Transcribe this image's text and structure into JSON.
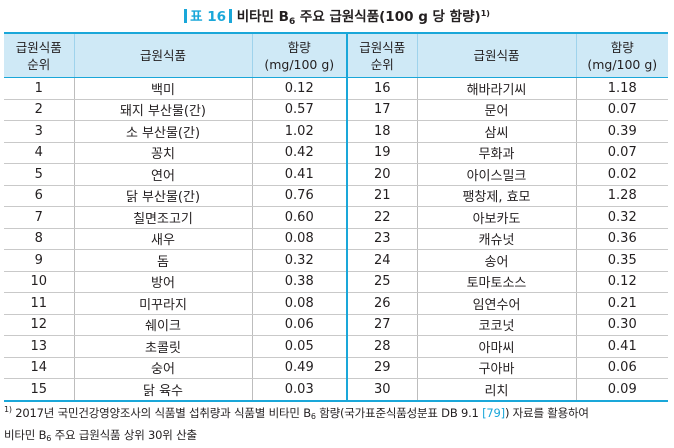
{
  "title": {
    "tag": "표 16",
    "text_before": "비타민 B",
    "subscript": "6",
    "text_after": " 주요 급원식품(100 g 당 함량)",
    "note_mark": "1)"
  },
  "table": {
    "headers": {
      "rank": [
        "급원식품",
        "순위"
      ],
      "food": "급원식품",
      "amount": [
        "함량",
        "(mg/100 g)"
      ]
    },
    "left_rows": [
      {
        "rank": "1",
        "food": "백미",
        "amount": "0.12"
      },
      {
        "rank": "2",
        "food": "돼지 부산물(간)",
        "amount": "0.57"
      },
      {
        "rank": "3",
        "food": "소 부산물(간)",
        "amount": "1.02"
      },
      {
        "rank": "4",
        "food": "꽁치",
        "amount": "0.42"
      },
      {
        "rank": "5",
        "food": "연어",
        "amount": "0.41"
      },
      {
        "rank": "6",
        "food": "닭 부산물(간)",
        "amount": "0.76"
      },
      {
        "rank": "7",
        "food": "칠면조고기",
        "amount": "0.60"
      },
      {
        "rank": "8",
        "food": "새우",
        "amount": "0.08"
      },
      {
        "rank": "9",
        "food": "돔",
        "amount": "0.32"
      },
      {
        "rank": "10",
        "food": "방어",
        "amount": "0.38"
      },
      {
        "rank": "11",
        "food": "미꾸라지",
        "amount": "0.08"
      },
      {
        "rank": "12",
        "food": "쉐이크",
        "amount": "0.06"
      },
      {
        "rank": "13",
        "food": "초콜릿",
        "amount": "0.05"
      },
      {
        "rank": "14",
        "food": "숭어",
        "amount": "0.49"
      },
      {
        "rank": "15",
        "food": "닭 육수",
        "amount": "0.03"
      }
    ],
    "right_rows": [
      {
        "rank": "16",
        "food": "해바라기씨",
        "amount": "1.18"
      },
      {
        "rank": "17",
        "food": "문어",
        "amount": "0.07"
      },
      {
        "rank": "18",
        "food": "삼씨",
        "amount": "0.39"
      },
      {
        "rank": "19",
        "food": "무화과",
        "amount": "0.07"
      },
      {
        "rank": "20",
        "food": "아이스밀크",
        "amount": "0.02"
      },
      {
        "rank": "21",
        "food": "팽창제, 효모",
        "amount": "1.28"
      },
      {
        "rank": "22",
        "food": "아보카도",
        "amount": "0.32"
      },
      {
        "rank": "23",
        "food": "캐슈넛",
        "amount": "0.36"
      },
      {
        "rank": "24",
        "food": "송어",
        "amount": "0.35"
      },
      {
        "rank": "25",
        "food": "토마토소스",
        "amount": "0.12"
      },
      {
        "rank": "26",
        "food": "임연수어",
        "amount": "0.21"
      },
      {
        "rank": "27",
        "food": "코코넛",
        "amount": "0.30"
      },
      {
        "rank": "28",
        "food": "아마씨",
        "amount": "0.41"
      },
      {
        "rank": "29",
        "food": "구아바",
        "amount": "0.06"
      },
      {
        "rank": "30",
        "food": "리치",
        "amount": "0.09"
      }
    ]
  },
  "footnote": {
    "mark": "1)",
    "line1_before": " 2017년 국민건강영양조사의 식품별 섭취량과 식품별 비타민 B",
    "line1_sub": "6",
    "line1_after": " 함량(국가표준식품성분표 DB 9.1 ",
    "ref": "[79]",
    "line1_end": ") 자료를 활용하여",
    "line2_before": "비타민 B",
    "line2_sub": "6",
    "line2_after": " 주요 급원식품 상위 30위 산출"
  },
  "colors": {
    "accent": "#1aa7d9",
    "header_bg": "#cfe9f6"
  }
}
